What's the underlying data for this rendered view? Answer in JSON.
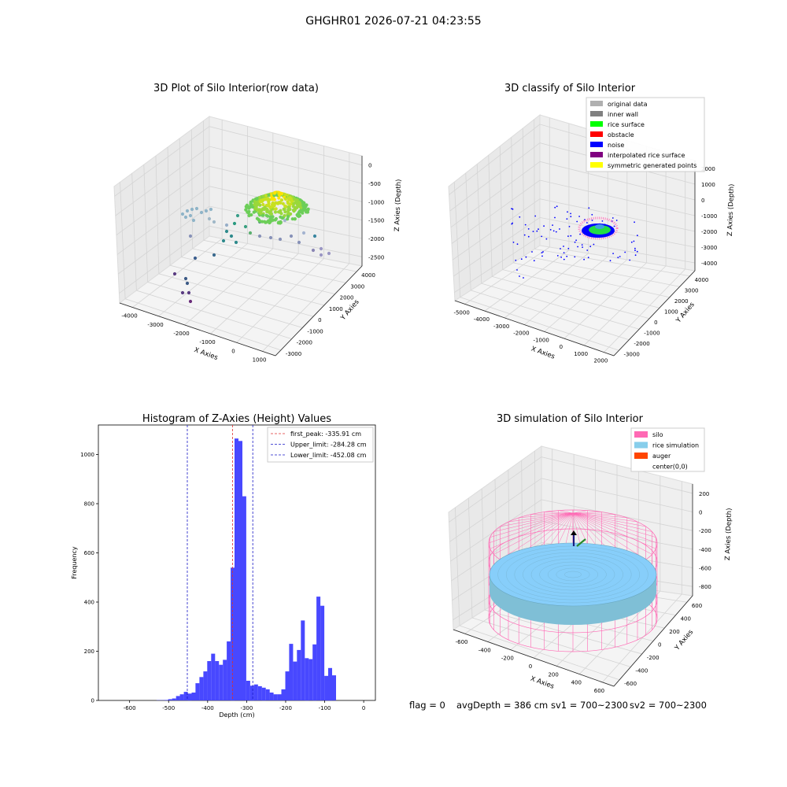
{
  "figure_title": "GHGHR01 2026-07-21 04:23:55",
  "status": {
    "flag_text": "flag = 0",
    "avg_depth_text": "avgDepth = 386 cm",
    "sv1_text": "sv1 = 700~2300",
    "sv2_text": "sv2 = 700~2300"
  },
  "colors": {
    "histogram_bar": "#4848ff",
    "first_peak_line": "#e03030",
    "limit_lines": "#1818c8",
    "silo_wire": "#ff69b4",
    "rice_surface": "#87cefa",
    "auger": "#ff4500",
    "noise": "#0000ff",
    "rice_surface_points": "#00ff00",
    "pane_gray": "#f2f2f2"
  },
  "chart_data": [
    {
      "type": "scatter3d",
      "title": "3D Plot of Silo Interior(row data)",
      "xlabel": "X Axies",
      "ylabel": "Y Axies",
      "zlabel": "Z Axies (Depth)",
      "x_ticks": [
        "-4000",
        "-3000",
        "-2000",
        "-1000",
        "0",
        "1000"
      ],
      "y_ticks": [
        "-3000",
        "-2000",
        "-1000",
        "0",
        "1000",
        "2000",
        "3000",
        "4000"
      ],
      "z_ticks": [
        "0",
        "-500",
        "-1000",
        "-1500",
        "-2000",
        "-2500"
      ],
      "colormap": "viridis"
    },
    {
      "type": "scatter3d",
      "title": "3D classify of Silo Interior",
      "xlabel": "X Axies",
      "ylabel": "Y Axies",
      "zlabel": "Z Axies (Depth)",
      "x_ticks": [
        "-5000",
        "-4000",
        "-3000",
        "-2000",
        "-1000",
        "0",
        "1000",
        "2000"
      ],
      "y_ticks": [
        "-3000",
        "-2000",
        "-1000",
        "0",
        "1000",
        "2000",
        "3000",
        "4000"
      ],
      "z_ticks": [
        "2000",
        "1000",
        "0",
        "-1000",
        "-2000",
        "-3000",
        "-4000"
      ],
      "legend": [
        {
          "label": "original data",
          "color": "#b0b0b0"
        },
        {
          "label": "inner wall",
          "color": "#808080"
        },
        {
          "label": "rice surface",
          "color": "#00ff00"
        },
        {
          "label": "obstacle",
          "color": "#ff0000"
        },
        {
          "label": "noise",
          "color": "#0000ff"
        },
        {
          "label": "interpolated rice surface",
          "color": "#800080"
        },
        {
          "label": "symmetric generated points",
          "color": "#ffff00"
        }
      ],
      "legend_position": "top-right"
    },
    {
      "type": "bar",
      "title": "Histogram of Z-Axies (Height) Values",
      "xlabel": "Depth (cm)",
      "ylabel": "Frequency",
      "xlim": [
        -680,
        30
      ],
      "ylim": [
        0,
        1120
      ],
      "x_ticks": [
        -600,
        -500,
        -400,
        -300,
        -200,
        -100,
        0
      ],
      "y_ticks": [
        0,
        200,
        400,
        600,
        800,
        1000
      ],
      "bin_width": 10,
      "bins": [
        [
          -590,
          0
        ],
        [
          -580,
          1
        ],
        [
          -570,
          1
        ],
        [
          -560,
          2
        ],
        [
          -550,
          5
        ],
        [
          -540,
          8
        ],
        [
          -530,
          18
        ],
        [
          -520,
          25
        ],
        [
          -510,
          35
        ],
        [
          -500,
          28
        ],
        [
          -490,
          32
        ],
        [
          -480,
          70
        ],
        [
          -470,
          95
        ],
        [
          -460,
          118
        ],
        [
          -450,
          160
        ],
        [
          -440,
          190
        ],
        [
          -430,
          160
        ],
        [
          -420,
          145
        ],
        [
          -410,
          165
        ],
        [
          -400,
          240
        ],
        [
          -390,
          540
        ],
        [
          -380,
          1065
        ],
        [
          -370,
          1055
        ],
        [
          -360,
          830
        ],
        [
          -350,
          80
        ],
        [
          -340,
          60
        ],
        [
          -330,
          65
        ],
        [
          -320,
          58
        ],
        [
          -310,
          52
        ],
        [
          -300,
          45
        ],
        [
          -290,
          32
        ],
        [
          -280,
          25
        ],
        [
          -270,
          25
        ],
        [
          -260,
          45
        ],
        [
          -250,
          118
        ],
        [
          -240,
          230
        ],
        [
          -230,
          158
        ],
        [
          -220,
          205
        ],
        [
          -210,
          325
        ],
        [
          -200,
          172
        ],
        [
          -190,
          168
        ],
        [
          -180,
          228
        ],
        [
          -170,
          422
        ],
        [
          -160,
          385
        ],
        [
          -150,
          100
        ],
        [
          -140,
          132
        ],
        [
          -130,
          102
        ]
      ],
      "reference_lines": [
        {
          "label": "first_peak: -335.91 cm",
          "x": -335.91,
          "color": "#e03030"
        },
        {
          "label": "Upper_limit: -284.28 cm",
          "x": -284.28,
          "color": "#1818c8"
        },
        {
          "label": "Lower_limit: -452.08 cm",
          "x": -452.08,
          "color": "#1818c8"
        }
      ],
      "legend_position": "top-right"
    },
    {
      "type": "surface3d",
      "title": "3D simulation of Silo Interior",
      "xlabel": "X Axies",
      "ylabel": "Y Axies",
      "zlabel": "Z Axies (Depth)",
      "x_ticks": [
        "-600",
        "-400",
        "-200",
        "0",
        "200",
        "400",
        "600"
      ],
      "y_ticks": [
        "-600",
        "-400",
        "-200",
        "0",
        "200",
        "400",
        "600"
      ],
      "z_ticks": [
        "200",
        "0",
        "-200",
        "-400",
        "-600",
        "-800"
      ],
      "legend": [
        {
          "label": "silo",
          "color": "#ff69b4"
        },
        {
          "label": "rice simulation",
          "color": "#87ceeb"
        },
        {
          "label": "auger",
          "color": "#ff4500"
        },
        {
          "label": "center(0,0)",
          "color": ""
        }
      ],
      "legend_position": "top-right"
    }
  ]
}
